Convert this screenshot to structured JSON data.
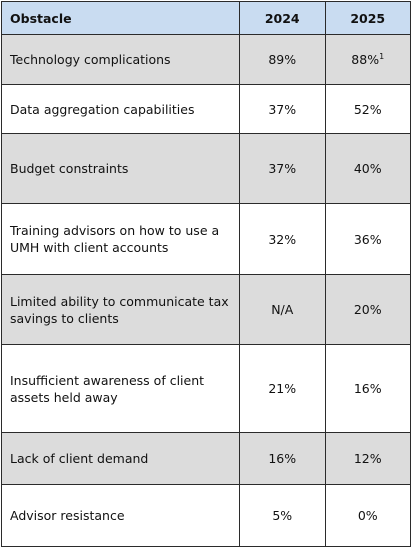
{
  "table": {
    "headers": {
      "obstacle": "Obstacle",
      "year_a": "2024",
      "year_b": "2025"
    },
    "rows": [
      {
        "obstacle": "Technology complications",
        "y2024": "89%",
        "y2025": "88%",
        "y2025_footnote": "1",
        "shaded": true
      },
      {
        "obstacle": "Data aggregation capabilities",
        "y2024": "37%",
        "y2025": "52%",
        "shaded": false
      },
      {
        "obstacle": "Budget constraints",
        "y2024": "37%",
        "y2025": "40%",
        "shaded": true
      },
      {
        "obstacle": "Training advisors on how to use a UMH with client accounts",
        "y2024": "32%",
        "y2025": "36%",
        "shaded": false
      },
      {
        "obstacle": "Limited ability to communicate tax savings to clients",
        "y2024": "N/A",
        "y2025": "20%",
        "shaded": true
      },
      {
        "obstacle": "Insufficient awareness of client assets held away",
        "y2024": "21%",
        "y2025": "16%",
        "shaded": false
      },
      {
        "obstacle": "Lack of client demand",
        "y2024": "16%",
        "y2025": "12%",
        "shaded": true
      },
      {
        "obstacle": "Advisor resistance",
        "y2024": "5%",
        "y2025": "0%",
        "shaded": false
      }
    ]
  },
  "colors": {
    "header_bg": "#c9dcf1",
    "shaded_row_bg": "#dcdcdc",
    "border": "#2b2b2b"
  }
}
